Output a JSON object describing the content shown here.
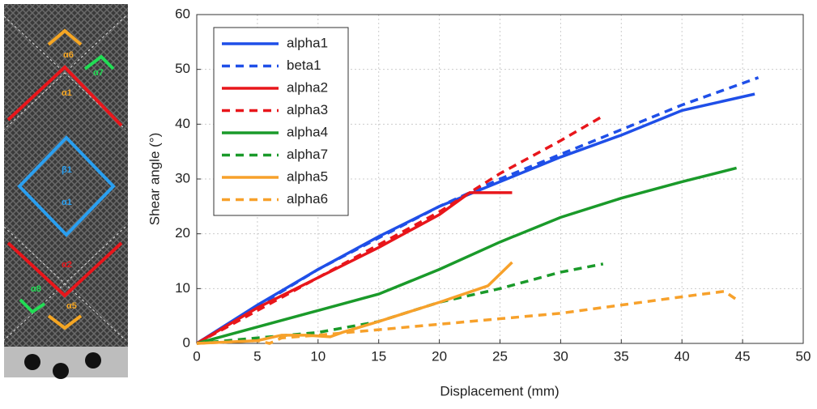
{
  "photo_labels": [
    "α6",
    "α7",
    "α1",
    "β1",
    "α1",
    "α2",
    "α8",
    "α5"
  ],
  "chart_data": {
    "type": "line",
    "x_label": "Displacement (mm)",
    "y_label": "Shear angle (°)",
    "xlim": [
      0,
      50
    ],
    "ylim": [
      0,
      60
    ],
    "xticks": [
      0,
      5,
      10,
      15,
      20,
      25,
      30,
      35,
      40,
      45,
      50
    ],
    "yticks": [
      0,
      10,
      20,
      30,
      40,
      50,
      60
    ],
    "grid": true,
    "legend": "upper-left",
    "series": [
      {
        "name": "alpha1",
        "color": "#1f4fe8",
        "dash": false,
        "x": [
          0,
          5,
          10,
          15,
          20,
          25,
          30,
          35,
          40,
          46
        ],
        "values": [
          0,
          7,
          13.5,
          19.5,
          25,
          29.5,
          34,
          38,
          42.5,
          45.5
        ]
      },
      {
        "name": "beta1",
        "color": "#1f4fe8",
        "dash": true,
        "x": [
          0,
          10,
          20,
          25,
          30,
          35,
          40,
          46.3
        ],
        "values": [
          0,
          13.5,
          25,
          30,
          34.5,
          39,
          43.5,
          48.5
        ]
      },
      {
        "name": "alpha2",
        "color": "#e8161b",
        "dash": false,
        "x": [
          0,
          5,
          10,
          15,
          20,
          22.5,
          26
        ],
        "values": [
          0,
          6.5,
          12,
          17.5,
          23.5,
          27.5,
          27.5
        ]
      },
      {
        "name": "alpha3",
        "color": "#e8161b",
        "dash": true,
        "x": [
          0,
          10,
          20,
          22.5,
          25,
          30,
          33.5
        ],
        "values": [
          0,
          12,
          24,
          27.5,
          31,
          37,
          41.5
        ]
      },
      {
        "name": "alpha4",
        "color": "#1a9a2a",
        "dash": false,
        "x": [
          0,
          5,
          10,
          15,
          20,
          25,
          30,
          35,
          40,
          44.5
        ],
        "values": [
          0,
          3,
          6,
          9,
          13.5,
          18.5,
          23,
          26.5,
          29.5,
          32
        ]
      },
      {
        "name": "alpha7",
        "color": "#1a9a2a",
        "dash": true,
        "x": [
          0,
          5,
          10,
          15,
          20,
          25,
          30,
          33.5
        ],
        "values": [
          0,
          1,
          2,
          4,
          7.5,
          10,
          13,
          14.5
        ]
      },
      {
        "name": "alpha5",
        "color": "#f7a12b",
        "dash": false,
        "x": [
          0,
          5,
          7,
          9,
          11,
          12,
          15,
          20,
          24,
          26
        ],
        "values": [
          0,
          0.5,
          1.5,
          1.5,
          1.2,
          2,
          4,
          7.5,
          10.5,
          14.8
        ]
      },
      {
        "name": "alpha6",
        "color": "#f7a12b",
        "dash": true,
        "x": [
          0,
          5,
          6,
          7,
          10,
          15,
          20,
          25,
          30,
          35,
          40,
          43.5,
          44.5
        ],
        "values": [
          0,
          0.5,
          0,
          1,
          1.5,
          2.5,
          3.5,
          4.5,
          5.5,
          7,
          8.5,
          9.5,
          8
        ]
      }
    ]
  }
}
